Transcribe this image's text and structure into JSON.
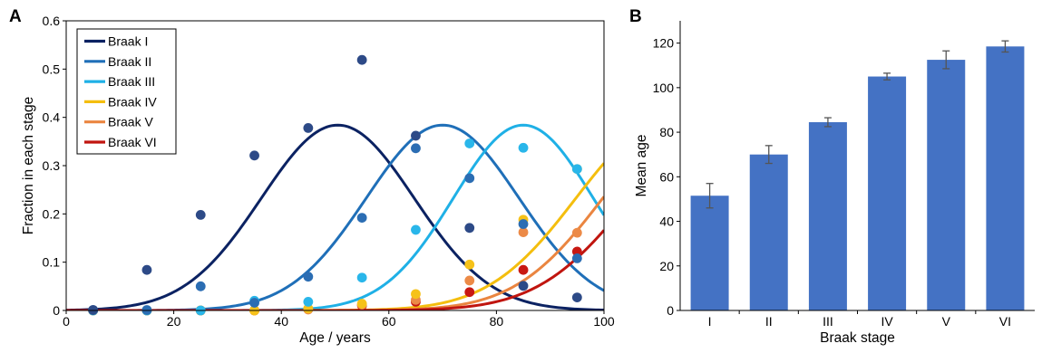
{
  "figure": {
    "panel_a_letter": "A",
    "panel_b_letter": "B"
  },
  "chart_data": [
    {
      "panel": "A",
      "type": "scatter",
      "title": "",
      "xlabel": "Age / years",
      "ylabel": "Fraction in each stage",
      "xlim": [
        0,
        100
      ],
      "ylim": [
        0,
        0.6
      ],
      "xticks": [
        0,
        20,
        40,
        60,
        80,
        100
      ],
      "yticks": [
        0,
        0.1,
        0.2,
        0.3,
        0.4,
        0.5,
        0.6
      ],
      "grid": false,
      "legend_position": "top-left",
      "curve_peak": 0.384,
      "series": [
        {
          "name": "Braak I",
          "color": "#0b2262",
          "point_color": "#2d4a87",
          "curve_center": 50.5,
          "curve_sigma": 14.2,
          "x": [
            5,
            15,
            25,
            35,
            45,
            55,
            65,
            75,
            85,
            95
          ],
          "y": [
            0.001,
            0.084,
            0.198,
            0.321,
            0.378,
            0.519,
            0.362,
            0.171,
            0.051,
            0.027
          ]
        },
        {
          "name": "Braak II",
          "color": "#1f6fb8",
          "point_color": "#2b6db3",
          "curve_center": 70,
          "curve_sigma": 14.2,
          "x": [
            5,
            15,
            25,
            35,
            45,
            55,
            65,
            75,
            85,
            95
          ],
          "y": [
            0.001,
            0.001,
            0.05,
            0.016,
            0.07,
            0.192,
            0.336,
            0.274,
            0.179,
            0.108
          ]
        },
        {
          "name": "Braak III",
          "color": "#1fb0e6",
          "point_color": "#29b6ea",
          "curve_center": 85,
          "curve_sigma": 13.0,
          "x": [
            5,
            15,
            25,
            35,
            45,
            55,
            65,
            75,
            85,
            95
          ],
          "y": [
            0,
            0,
            0,
            0.02,
            0.018,
            0.068,
            0.167,
            0.346,
            0.337,
            0.293
          ]
        },
        {
          "name": "Braak IV",
          "color": "#f4be0e",
          "point_color": "#f6c219",
          "curve_center": 111,
          "curve_sigma": 16.2,
          "x": [
            5,
            15,
            25,
            35,
            45,
            55,
            65,
            75,
            85,
            95
          ],
          "y": [
            0,
            0,
            0,
            0,
            0.004,
            0.014,
            0.034,
            0.095,
            0.188,
            0.293
          ]
        },
        {
          "name": "Braak V",
          "color": "#ea8540",
          "point_color": "#ec8a47",
          "curve_center": 116,
          "curve_sigma": 16.2,
          "x": [
            5,
            15,
            25,
            35,
            45,
            55,
            65,
            75,
            85,
            95
          ],
          "y": [
            0,
            0,
            0,
            0,
            0.002,
            0.012,
            0.022,
            0.062,
            0.162,
            0.161
          ]
        },
        {
          "name": "Braak VI",
          "color": "#c0150f",
          "point_color": "#c81812",
          "curve_center": 122,
          "curve_sigma": 17.0,
          "x": [
            5,
            15,
            25,
            35,
            45,
            55,
            65,
            75,
            85,
            95
          ],
          "y": [
            0,
            0,
            0,
            0,
            0.003,
            0.01,
            0.018,
            0.038,
            0.084,
            0.122
          ]
        }
      ]
    },
    {
      "panel": "B",
      "type": "bar",
      "title": "",
      "xlabel": "Braak stage",
      "ylabel": "Mean age",
      "ylim": [
        0,
        130
      ],
      "yticks": [
        0,
        20,
        40,
        60,
        80,
        100,
        120
      ],
      "grid": false,
      "bar_color": "#4472c4",
      "error_color": "#555555",
      "categories": [
        "I",
        "II",
        "III",
        "IV",
        "V",
        "VI"
      ],
      "values": [
        51.5,
        70,
        84.5,
        105,
        112.5,
        118.5
      ],
      "errors": [
        5.5,
        4,
        2,
        1.5,
        4,
        2.5
      ]
    }
  ]
}
